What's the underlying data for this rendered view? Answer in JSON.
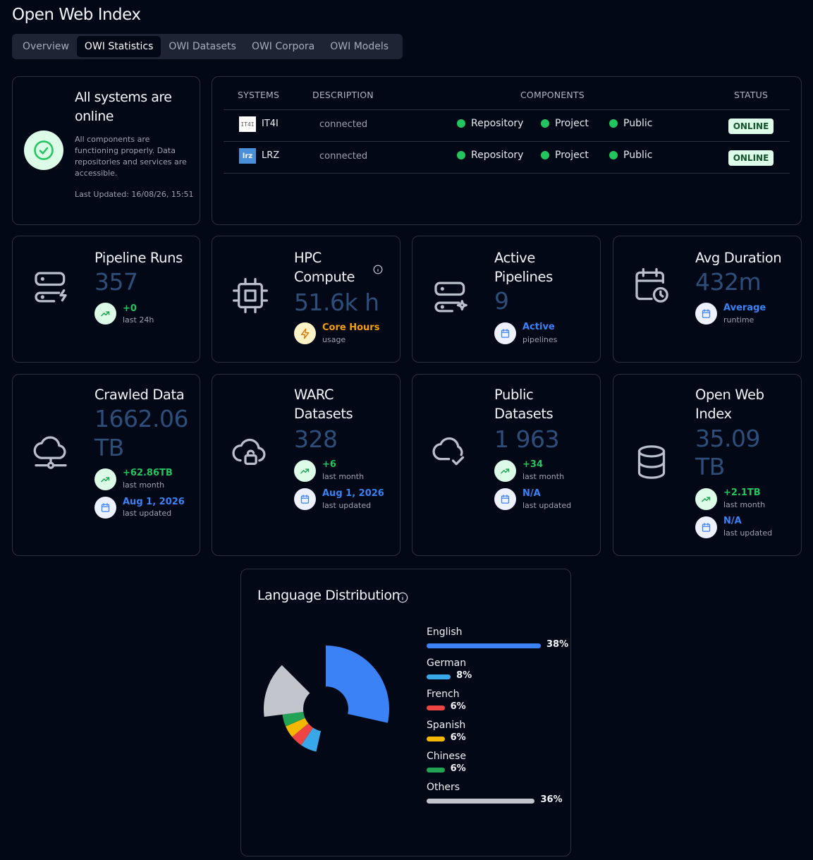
{
  "app": {
    "title": "Open Web Index"
  },
  "tabs": [
    {
      "label": "Overview",
      "active": false
    },
    {
      "label": "OWI Statistics",
      "active": true
    },
    {
      "label": "OWI Datasets",
      "active": false
    },
    {
      "label": "OWI Corpora",
      "active": false
    },
    {
      "label": "OWI Models",
      "active": false
    }
  ],
  "status": {
    "title": "All systems are online",
    "description": "All components are functioning properly. Data repositories and services are accessible.",
    "last_updated": "Last Updated: 16/08/26, 15:51"
  },
  "systems": {
    "headers": {
      "systems": "SYSTEMS",
      "description": "DESCRIPTION",
      "components": "COMPONENTS",
      "status": "STATUS"
    },
    "rows": [
      {
        "logo": "IT4I",
        "name": "IT4I",
        "description": "connected",
        "components": [
          "Repository",
          "Project",
          "Public"
        ],
        "status": "ONLINE"
      },
      {
        "logo": "lrz",
        "name": "LRZ",
        "description": "connected",
        "components": [
          "Repository",
          "Project",
          "Public"
        ],
        "status": "ONLINE"
      }
    ]
  },
  "stats": {
    "pipeline_runs": {
      "title": "Pipeline Runs",
      "value": "357",
      "badge1_main": "+0",
      "badge1_sub": "last 24h"
    },
    "hpc": {
      "title": "HPC Compute",
      "value": "51.6k h",
      "badge1_main": "Core Hours",
      "badge1_sub": "usage"
    },
    "active_pipelines": {
      "title": "Active Pipelines",
      "value": "9",
      "badge1_main": "Active",
      "badge1_sub": "pipelines"
    },
    "avg_duration": {
      "title": "Avg Duration",
      "value": "432m",
      "badge1_main": "Average",
      "badge1_sub": "runtime"
    },
    "crawled": {
      "title": "Crawled Data",
      "value_line1": "1662.06",
      "value_line2": "TB",
      "badge1_main": "+62.86TB",
      "badge1_sub": "last month",
      "badge2_main": "Aug 1, 2026",
      "badge2_sub": "last updated"
    },
    "warc": {
      "title": "WARC Datasets",
      "value": "328",
      "badge1_main": "+6",
      "badge1_sub": "last month",
      "badge2_main": "Aug 1, 2026",
      "badge2_sub": "last updated"
    },
    "public": {
      "title": "Public Datasets",
      "value": "1 963",
      "badge1_main": "+34",
      "badge1_sub": "last month",
      "badge2_main": "N/A",
      "badge2_sub": "last updated"
    },
    "owi": {
      "title": "Open Web Index",
      "value_line1": "35.09",
      "value_line2": "TB",
      "badge1_main": "+2.1TB",
      "badge1_sub": "last month",
      "badge2_main": "N/A",
      "badge2_sub": "last updated"
    }
  },
  "language": {
    "title": "Language Distribution",
    "items": [
      {
        "name": "English",
        "pct": "38%",
        "value": 38,
        "color": "#3b82f6"
      },
      {
        "name": "German",
        "pct": "8%",
        "value": 8,
        "color": "#38a8e8"
      },
      {
        "name": "French",
        "pct": "6%",
        "value": 6,
        "color": "#ef4444"
      },
      {
        "name": "Spanish",
        "pct": "6%",
        "value": 6,
        "color": "#f5b800"
      },
      {
        "name": "Chinese",
        "pct": "6%",
        "value": 6,
        "color": "#22a355"
      },
      {
        "name": "Others",
        "pct": "36%",
        "value": 36,
        "color": "#c2c6cc"
      }
    ]
  },
  "chart_data": {
    "type": "pie",
    "title": "Language Distribution",
    "categories": [
      "English",
      "German",
      "French",
      "Spanish",
      "Chinese",
      "Others"
    ],
    "values": [
      38,
      8,
      6,
      6,
      6,
      36
    ]
  }
}
